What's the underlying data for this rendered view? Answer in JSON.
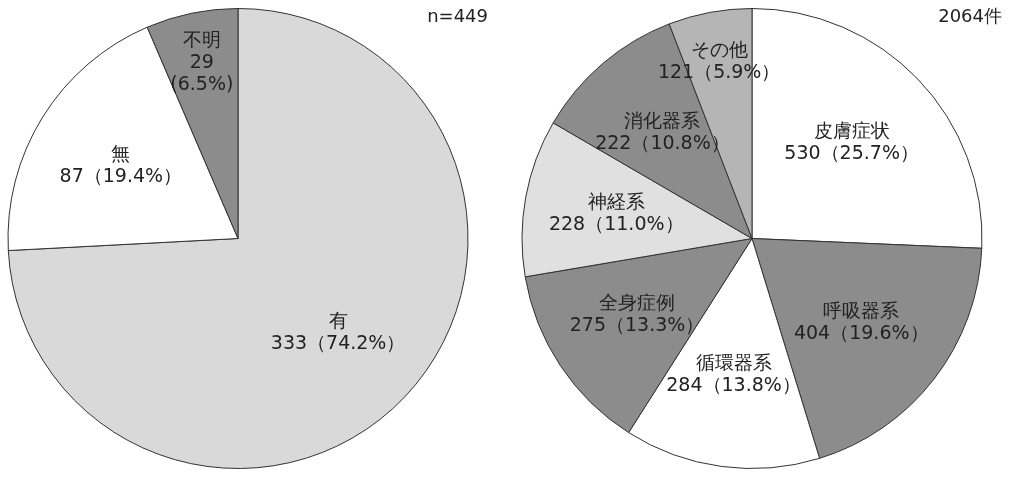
{
  "chart_data": [
    {
      "type": "pie",
      "title": "n=449",
      "categories": [
        "有",
        "無",
        "不明"
      ],
      "values": [
        333,
        87,
        29
      ],
      "colors": [
        "#d9d9d9",
        "#ffffff",
        "#8c8c8c"
      ],
      "value_labels": [
        "333（74.2%）",
        "87（19.4%）",
        "29\n(6.5%)"
      ]
    },
    {
      "type": "pie",
      "title": "2064件",
      "categories": [
        "皮膚症状",
        "呼吸器系",
        "循環器系",
        "全身症例",
        "神経系",
        "消化器系",
        "その他"
      ],
      "values": [
        530,
        404,
        284,
        275,
        228,
        222,
        121
      ],
      "colors": [
        "#ffffff",
        "#8c8c8c",
        "#ffffff",
        "#8c8c8c",
        "#e0e0e0",
        "#8c8c8c",
        "#b5b5b5"
      ],
      "value_labels": [
        "530（25.7%）",
        "404（19.6%）",
        "284（13.8%）",
        "275（13.3%）",
        "228（11.0%）",
        "222（10.8%）",
        "121（5.9%）"
      ]
    }
  ]
}
